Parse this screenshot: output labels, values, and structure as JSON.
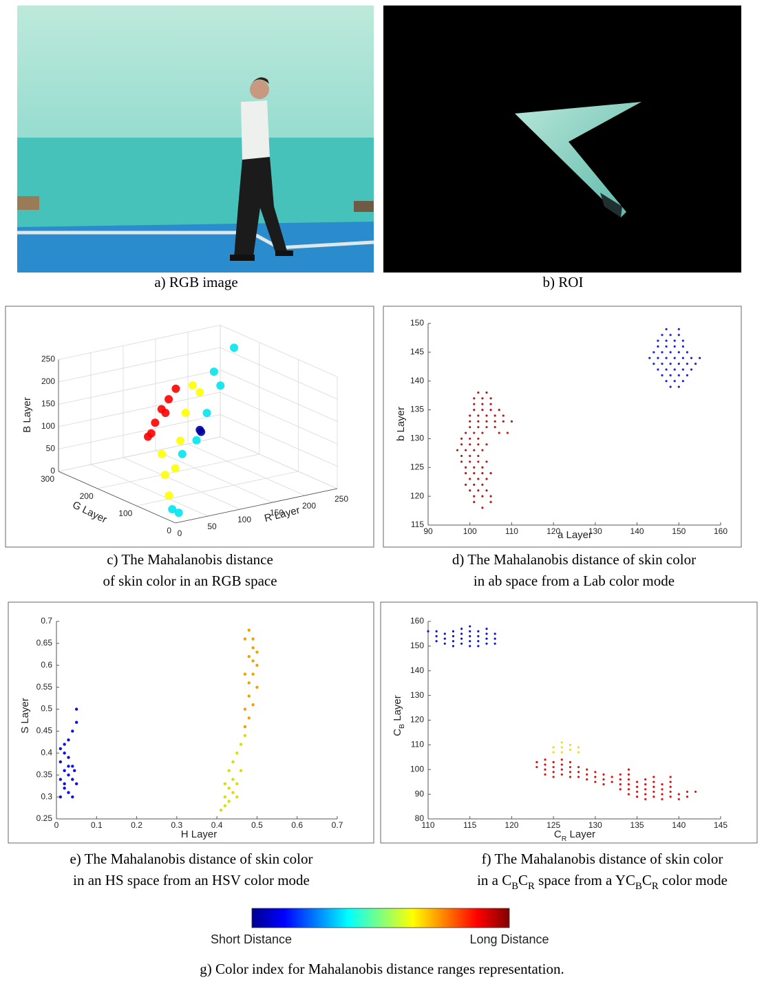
{
  "panels": [
    {
      "caption": [
        [
          {
            "text": "a) RGB image"
          }
        ]
      ]
    },
    {
      "caption": [
        [
          {
            "text": "b) ROI"
          }
        ]
      ]
    },
    {
      "caption": [
        [
          {
            "text": "c) The Mahalanobis distance"
          }
        ],
        [
          {
            "text": "of skin color in an RGB space"
          }
        ]
      ],
      "chart_data": {
        "type": "scatter3d",
        "xlabel": "R Layer",
        "ylabel": "G Layer",
        "zlabel": "B Layer",
        "xlim": [
          0,
          250
        ],
        "ylim": [
          0,
          300
        ],
        "zlim": [
          0,
          250
        ],
        "xticks": [
          0,
          50,
          100,
          150,
          200,
          250
        ],
        "yticks": [
          0,
          100,
          200,
          300
        ],
        "zticks": [
          0,
          50,
          100,
          150,
          200,
          250
        ],
        "grid": true,
        "series": [
          {
            "color": "#ff0000",
            "x": [
              78,
              83,
              89,
              99,
              105,
              110,
              121
            ],
            "y": [
              200,
              200,
              200,
              200,
              200,
              200,
              200
            ],
            "z": [
              92,
              98,
              120,
              147,
              137,
              166,
              186
            ]
          },
          {
            "color": "#ffff00",
            "x": [
              117,
              128,
              106,
              98,
              90,
              20,
              14,
              9
            ],
            "y": [
              150,
              150,
              150,
              150,
              150,
              50,
              50,
              50
            ],
            "z": [
              214,
              195,
              156,
              96,
              37,
              36,
              84,
              132
            ]
          },
          {
            "color": "#00e5ee",
            "x": [
              211,
              180,
              190,
              169,
              153,
              131,
              7,
              17
            ],
            "y": [
              200,
              200,
              200,
              200,
              200,
              200,
              20,
              20
            ],
            "z": [
              250,
              206,
              172,
              117,
              61,
              37,
              21,
              10
            ]
          },
          {
            "color": "#0000a0",
            "x": [
              128,
              130
            ],
            "y": [
              150,
              150
            ],
            "z": [
              111,
              106
            ]
          }
        ]
      }
    },
    {
      "caption": [
        [
          {
            "text": "d) The Mahalanobis distance of skin color"
          }
        ],
        [
          {
            "text": "in ab space from a Lab color mode"
          }
        ]
      ],
      "chart_data": {
        "type": "scatter",
        "xlabel": "a Layer",
        "ylabel": "b Layer",
        "xlim": [
          90,
          160
        ],
        "ylim": [
          115,
          150
        ],
        "xticks": [
          90,
          100,
          110,
          120,
          130,
          140,
          150,
          160
        ],
        "yticks": [
          115,
          120,
          125,
          130,
          135,
          140,
          145,
          150
        ],
        "series": [
          {
            "color": "#2222dd",
            "x": [
              147,
              150,
              146,
              148,
              150,
              145,
              147,
              149,
              151,
              145,
              147,
              149,
              151,
              144,
              146,
              148,
              150,
              152,
              143,
              145,
              147,
              149,
              151,
              153,
              155,
              144,
              146,
              148,
              150,
              152,
              154,
              145,
              147,
              149,
              151,
              153,
              146,
              148,
              150,
              152,
              147,
              149,
              151,
              148,
              150
            ],
            "y": [
              149,
              149,
              148,
              148,
              148,
              147,
              147,
              147,
              147,
              146,
              146,
              146,
              146,
              145,
              145,
              145,
              145,
              145,
              144,
              144,
              144,
              144,
              144,
              144,
              144,
              143,
              143,
              143,
              143,
              143,
              143,
              142,
              142,
              142,
              142,
              142,
              141,
              141,
              141,
              141,
              140,
              140,
              140,
              139,
              139
            ]
          },
          {
            "color": "#b01c1c",
            "x": [
              102,
              104,
              101,
              103,
              105,
              101,
              103,
              105,
              101,
              103,
              105,
              107,
              100,
              102,
              104,
              106,
              108,
              100,
              102,
              104,
              106,
              108,
              110,
              100,
              102,
              104,
              106,
              99,
              101,
              103,
              107,
              109,
              98,
              100,
              102,
              98,
              100,
              102,
              104,
              97,
              99,
              101,
              103,
              98,
              100,
              102,
              98,
              100,
              102,
              104,
              99,
              101,
              103,
              99,
              101,
              103,
              105,
              100,
              102,
              104,
              99,
              101,
              103,
              100,
              102,
              104,
              101,
              103,
              105,
              101,
              105,
              103
            ],
            "y": [
              138,
              138,
              137,
              137,
              137,
              136,
              136,
              136,
              135,
              135,
              135,
              135,
              134,
              134,
              134,
              134,
              134,
              133,
              133,
              133,
              133,
              133,
              133,
              132,
              132,
              132,
              132,
              131,
              131,
              131,
              131,
              131,
              130,
              130,
              130,
              129,
              129,
              129,
              129,
              128,
              128,
              128,
              128,
              127,
              127,
              127,
              126,
              126,
              126,
              126,
              125,
              125,
              125,
              124,
              124,
              124,
              124,
              123,
              123,
              123,
              122,
              122,
              122,
              121,
              121,
              121,
              120,
              120,
              120,
              119,
              119,
              118
            ]
          }
        ]
      }
    },
    {
      "caption": [
        [
          {
            "text": "e) The Mahalanobis distance of skin color"
          }
        ],
        [
          {
            "text": "in an HS space from an HSV color mode"
          }
        ]
      ],
      "chart_data": {
        "type": "scatter",
        "xlabel": "H Layer",
        "ylabel": "S Layer",
        "xlim": [
          0,
          0.7
        ],
        "ylim": [
          0.25,
          0.7
        ],
        "xticks": [
          0,
          0.1,
          0.2,
          0.3,
          0.4,
          0.5,
          0.6,
          0.7
        ],
        "yticks": [
          0.25,
          0.3,
          0.35,
          0.4,
          0.45,
          0.5,
          0.55,
          0.6,
          0.65,
          0.7
        ],
        "series": [
          {
            "color": "#1010e0",
            "x": [
              0.01,
              0.02,
              0.03,
              0.04,
              0.01,
              0.02,
              0.03,
              0.04,
              0.05,
              0.01,
              0.02,
              0.03,
              0.04,
              0.02,
              0.03,
              0.01,
              0.04,
              0.05,
              0.05,
              0.03,
              0.02,
              0.045
            ],
            "y": [
              0.3,
              0.32,
              0.31,
              0.3,
              0.34,
              0.36,
              0.35,
              0.34,
              0.33,
              0.38,
              0.4,
              0.39,
              0.37,
              0.42,
              0.43,
              0.41,
              0.45,
              0.47,
              0.5,
              0.37,
              0.33,
              0.36
            ]
          },
          {
            "color": "#d8e000",
            "x": [
              0.41,
              0.42,
              0.42,
              0.43,
              0.43,
              0.44,
              0.44,
              0.45,
              0.43,
              0.44,
              0.45,
              0.46,
              0.46,
              0.47,
              0.45,
              0.42
            ],
            "y": [
              0.27,
              0.28,
              0.3,
              0.29,
              0.32,
              0.31,
              0.34,
              0.33,
              0.36,
              0.38,
              0.4,
              0.36,
              0.42,
              0.44,
              0.3,
              0.33
            ]
          },
          {
            "color": "#f0a000",
            "x": [
              0.47,
              0.47,
              0.48,
              0.48,
              0.49,
              0.48,
              0.49,
              0.5,
              0.49,
              0.5,
              0.48,
              0.47,
              0.48,
              0.49,
              0.5,
              0.47,
              0.49
            ],
            "y": [
              0.46,
              0.5,
              0.48,
              0.53,
              0.51,
              0.56,
              0.58,
              0.55,
              0.61,
              0.63,
              0.62,
              0.66,
              0.68,
              0.66,
              0.6,
              0.58,
              0.64
            ]
          }
        ]
      }
    },
    {
      "caption": [
        [
          {
            "text": "f) The Mahalanobis distance of skin color"
          }
        ],
        [
          {
            "text": "in a C"
          },
          {
            "text": "B",
            "sub": true
          },
          {
            "text": "C"
          },
          {
            "text": "R",
            "sub": true
          },
          {
            "text": " space from a YC"
          },
          {
            "text": "B",
            "sub": true
          },
          {
            "text": "C"
          },
          {
            "text": "R",
            "sub": true
          },
          {
            "text": " color mode"
          }
        ]
      ],
      "chart_data": {
        "type": "scatter",
        "xlabel": [
          {
            "text": "C"
          },
          {
            "text": "R",
            "sub": true
          },
          {
            "text": " Layer"
          }
        ],
        "ylabel": [
          {
            "text": "C"
          },
          {
            "text": "B",
            "sub": true
          },
          {
            "text": " Layer"
          }
        ],
        "xlim": [
          110,
          145
        ],
        "ylim": [
          80,
          160
        ],
        "xticks": [
          110,
          115,
          120,
          125,
          130,
          135,
          140,
          145
        ],
        "yticks": [
          80,
          90,
          100,
          110,
          120,
          130,
          140,
          150,
          160
        ],
        "series": [
          {
            "color": "#1010e0",
            "x": [
              110,
              111,
              111,
              111,
              112,
              112,
              112,
              113,
              113,
              113,
              113,
              114,
              114,
              114,
              114,
              115,
              115,
              115,
              115,
              115,
              116,
              116,
              116,
              116,
              117,
              117,
              117,
              117,
              118,
              118,
              118
            ],
            "y": [
              156,
              152,
              154,
              156,
              151,
              153,
              155,
              150,
              152,
              154,
              156,
              151,
              153,
              155,
              157,
              150,
              152,
              154,
              156,
              158,
              150,
              152,
              154,
              156,
              151,
              153,
              155,
              157,
              151,
              153,
              155
            ]
          },
          {
            "color": "#e01010",
            "x": [
              123,
              123,
              124,
              124,
              124,
              124,
              125,
              125,
              125,
              125,
              126,
              126,
              126,
              126,
              127,
              127,
              127,
              127,
              128,
              128,
              128,
              129,
              129,
              129,
              130,
              130,
              130,
              131,
              131,
              131,
              132,
              132,
              133,
              133,
              133,
              133,
              134,
              134,
              134,
              134,
              134,
              134,
              135,
              135,
              135,
              135,
              136,
              136,
              136,
              136,
              136,
              137,
              137,
              137,
              137,
              137,
              138,
              138,
              138,
              138,
              139,
              139,
              139,
              139,
              139,
              140,
              140,
              141,
              141,
              142
            ],
            "y": [
              101,
              103,
              98,
              100,
              102,
              104,
              97,
              99,
              101,
              103,
              98,
              100,
              102,
              104,
              97,
              99,
              101,
              103,
              97,
              99,
              101,
              96,
              98,
              100,
              95,
              97,
              99,
              94,
              96,
              98,
              95,
              97,
              92,
              94,
              96,
              98,
              90,
              92,
              94,
              96,
              98,
              100,
              89,
              91,
              93,
              95,
              88,
              90,
              92,
              94,
              96,
              89,
              91,
              93,
              95,
              97,
              88,
              90,
              92,
              94,
              89,
              91,
              93,
              95,
              97,
              88,
              90,
              89,
              91,
              91
            ]
          },
          {
            "color": "#f0e000",
            "x": [
              125,
              125,
              126,
              126,
              126,
              127,
              127,
              128,
              128
            ],
            "y": [
              107,
              109,
              107,
              109,
              111,
              108,
              110,
              107,
              109
            ]
          }
        ]
      }
    }
  ],
  "colorbar": {
    "labels": [
      "Short Distance",
      "Long Distance"
    ],
    "caption": "g) Color index for Mahalanobis distance ranges representation."
  }
}
